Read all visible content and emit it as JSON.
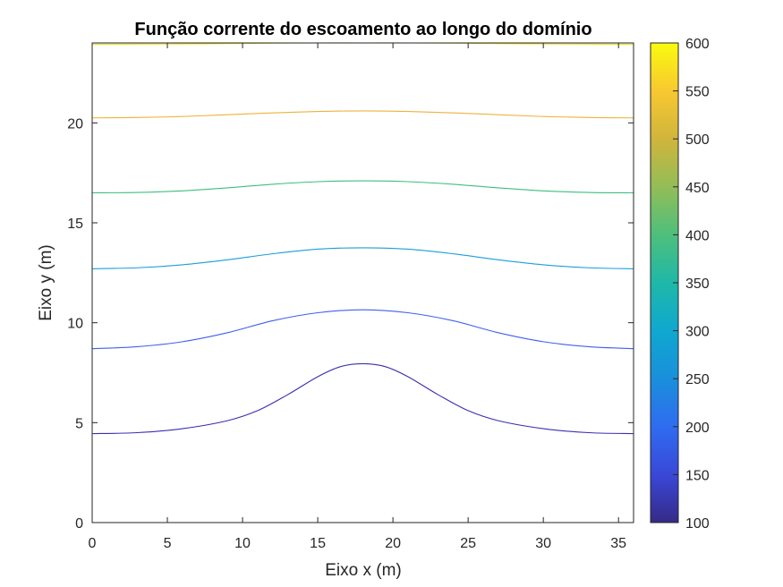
{
  "chart_data": {
    "type": "contour",
    "title": "Função corrente do escoamento ao longo do domínio",
    "xlabel": "Eixo x (m)",
    "ylabel": "Eixo y (m)",
    "xlim": [
      0,
      36
    ],
    "ylim": [
      0,
      24
    ],
    "x_ticks": [
      "0",
      "5",
      "10",
      "15",
      "20",
      "25",
      "30",
      "35"
    ],
    "x_tick_values": [
      0,
      5,
      10,
      15,
      20,
      25,
      30,
      35
    ],
    "y_ticks": [
      "0",
      "5",
      "10",
      "15",
      "20"
    ],
    "y_tick_values": [
      0,
      5,
      10,
      15,
      20
    ],
    "colorbar": {
      "range": [
        100,
        600
      ],
      "ticks": [
        "100",
        "150",
        "200",
        "250",
        "300",
        "350",
        "400",
        "450",
        "500",
        "550",
        "600"
      ],
      "tick_values": [
        100,
        150,
        200,
        250,
        300,
        350,
        400,
        450,
        500,
        550,
        600
      ],
      "colormap": "parula"
    },
    "series": [
      {
        "level": 100,
        "color": "#3a2fb0",
        "x": [
          0,
          3,
          6,
          9,
          11,
          13,
          15,
          16.5,
          18,
          19.5,
          21,
          23,
          25,
          27,
          30,
          33,
          36
        ],
        "y": [
          4.45,
          4.5,
          4.7,
          5.1,
          5.6,
          6.4,
          7.3,
          7.8,
          7.95,
          7.8,
          7.3,
          6.4,
          5.6,
          5.1,
          4.7,
          4.5,
          4.45
        ]
      },
      {
        "level": 200,
        "color": "#3f5ff0",
        "x": [
          0,
          3,
          6,
          9,
          12,
          15,
          18,
          21,
          24,
          27,
          30,
          33,
          36
        ],
        "y": [
          8.7,
          8.8,
          9.05,
          9.5,
          10.1,
          10.5,
          10.65,
          10.5,
          10.1,
          9.5,
          9.05,
          8.8,
          8.7
        ]
      },
      {
        "level": 300,
        "color": "#1a9ed8",
        "x": [
          0,
          3,
          6,
          9,
          12,
          15,
          18,
          21,
          24,
          27,
          30,
          33,
          36
        ],
        "y": [
          12.7,
          12.75,
          12.9,
          13.15,
          13.45,
          13.68,
          13.75,
          13.68,
          13.45,
          13.15,
          12.9,
          12.75,
          12.7
        ]
      },
      {
        "level": 400,
        "color": "#3cbf7f",
        "x": [
          0,
          3,
          6,
          9,
          12,
          15,
          18,
          21,
          24,
          27,
          30,
          33,
          36
        ],
        "y": [
          16.5,
          16.52,
          16.6,
          16.75,
          16.93,
          17.06,
          17.1,
          17.06,
          16.93,
          16.75,
          16.6,
          16.52,
          16.5
        ]
      },
      {
        "level": 550,
        "color": "#eeb23a",
        "x": [
          0,
          3,
          6,
          9,
          12,
          15,
          18,
          21,
          24,
          27,
          30,
          33,
          36
        ],
        "y": [
          20.25,
          20.27,
          20.32,
          20.41,
          20.5,
          20.57,
          20.6,
          20.57,
          20.5,
          20.41,
          20.32,
          20.27,
          20.25
        ]
      },
      {
        "level": 600,
        "color": "#f1e21f",
        "x": [
          0,
          3,
          6,
          9,
          12,
          15,
          18,
          21,
          24,
          27,
          30,
          33,
          36
        ],
        "y": [
          23.93,
          23.94,
          23.95,
          23.97,
          23.99,
          24.0,
          24.0,
          24.0,
          23.99,
          23.97,
          23.95,
          23.94,
          23.93
        ]
      }
    ]
  }
}
